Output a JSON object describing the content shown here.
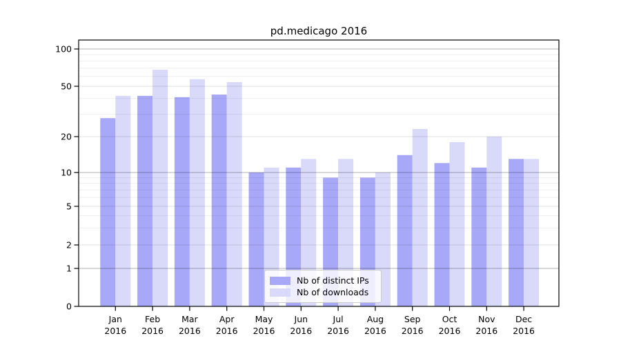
{
  "chart_data": {
    "type": "bar",
    "title": "pd.medicago 2016",
    "categories": [
      "Jan",
      "Feb",
      "Mar",
      "Apr",
      "May",
      "Jun",
      "Jul",
      "Aug",
      "Sep",
      "Oct",
      "Nov",
      "Dec"
    ],
    "x_tick_second_line": "2016",
    "series": [
      {
        "name": "Nb of distinct IPs",
        "color": "#a8a8f8",
        "values": [
          28,
          42,
          41,
          43,
          10,
          11,
          9,
          9,
          14,
          12,
          11,
          13
        ]
      },
      {
        "name": "Nb of downloads",
        "color": "#d9d9fa",
        "values": [
          42,
          68,
          57,
          54,
          11,
          13,
          13,
          10,
          23,
          18,
          20,
          13
        ]
      }
    ],
    "yscale": "symlog",
    "y_ticks": [
      0,
      1,
      2,
      5,
      10,
      20,
      50,
      100
    ],
    "y_minor_ticks": [
      3,
      4,
      6,
      7,
      8,
      9,
      30,
      40,
      60,
      70,
      80,
      90
    ],
    "ylim": [
      0,
      118
    ],
    "grid": true,
    "legend_position": "lower center",
    "axis_color": "#000000",
    "background_color": "#ffffff"
  }
}
